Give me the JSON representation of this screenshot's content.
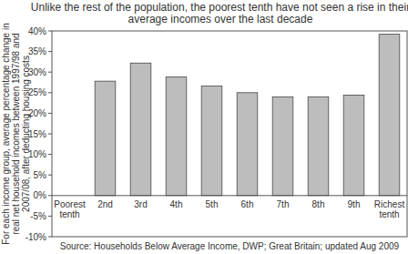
{
  "chart_data": {
    "type": "bar",
    "title": "Unlike the rest of the population, the poorest tenth have not seen a rise in their average incomes over the last decade",
    "y_label": "For each income group, average percentage change in real net household incomes between 1997/98 and 2007/08, after deducting housing costs",
    "source": "Source: Households Below Average Income, DWP; Great Britain; updated Aug 2009",
    "categories": [
      "Poorest tenth",
      "2nd",
      "3rd",
      "4th",
      "5th",
      "6th",
      "7th",
      "8th",
      "9th",
      "Richest tenth"
    ],
    "values": [
      0,
      27.8,
      32.2,
      28.8,
      26.6,
      25.0,
      24.0,
      24.0,
      24.4,
      39.2
    ],
    "color": "#bdbdbd",
    "ylim": [
      -10,
      40
    ],
    "yticks": [
      {
        "value": -10,
        "label": "-10%"
      },
      {
        "value": -5,
        "label": "-5%"
      },
      {
        "value": 0,
        "label": "0%"
      },
      {
        "value": 5,
        "label": "5%"
      },
      {
        "value": 10,
        "label": "10%"
      },
      {
        "value": 15,
        "label": "15%"
      },
      {
        "value": 20,
        "label": "20%"
      },
      {
        "value": 25,
        "label": "25%"
      },
      {
        "value": 30,
        "label": "30%"
      },
      {
        "value": 35,
        "label": "35%"
      },
      {
        "value": 40,
        "label": "40%"
      }
    ],
    "grid": false
  }
}
